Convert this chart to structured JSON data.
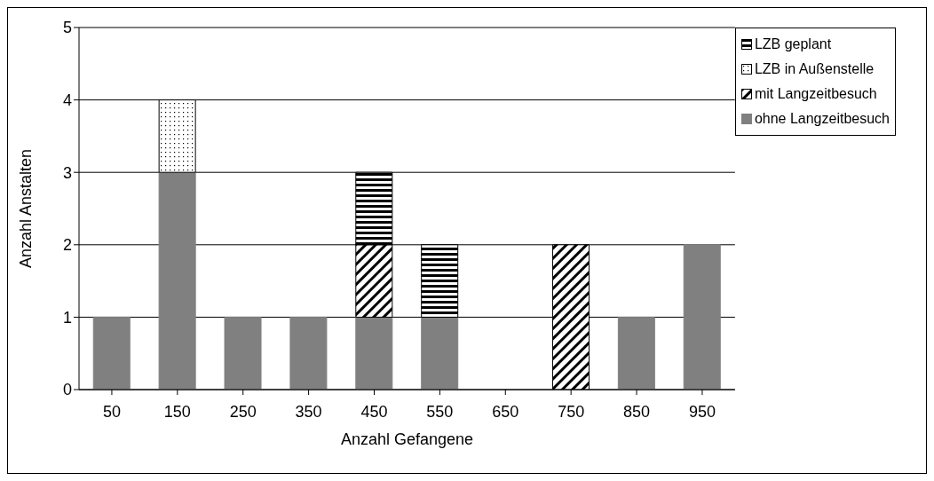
{
  "chart_data": {
    "type": "bar",
    "stacked": true,
    "xlabel": "Anzahl Gefangene",
    "ylabel": "Anzahl Anstalten",
    "categories": [
      "50",
      "150",
      "250",
      "350",
      "450",
      "550",
      "650",
      "750",
      "850",
      "950"
    ],
    "series": [
      {
        "name": "ohne Langzeitbesuch",
        "color": "#808080",
        "values": [
          1,
          3,
          1,
          1,
          1,
          1,
          0,
          0,
          1,
          2
        ]
      },
      {
        "name": "mit Langzeitbesuch",
        "color": "#000000",
        "values": [
          0,
          0,
          0,
          0,
          1,
          0,
          0,
          2,
          0,
          0
        ]
      },
      {
        "name": "LZB in Außenstelle",
        "color": "#000000",
        "values": [
          0,
          1,
          0,
          0,
          0,
          0,
          0,
          0,
          0,
          0
        ]
      },
      {
        "name": "LZB geplant",
        "color": "#000000",
        "values": [
          0,
          0,
          0,
          0,
          1,
          1,
          0,
          0,
          0,
          0
        ]
      }
    ],
    "ylim": [
      0,
      5
    ],
    "yticks": [
      0,
      1,
      2,
      3,
      4,
      5
    ],
    "grid": "y",
    "legend": "top right"
  }
}
